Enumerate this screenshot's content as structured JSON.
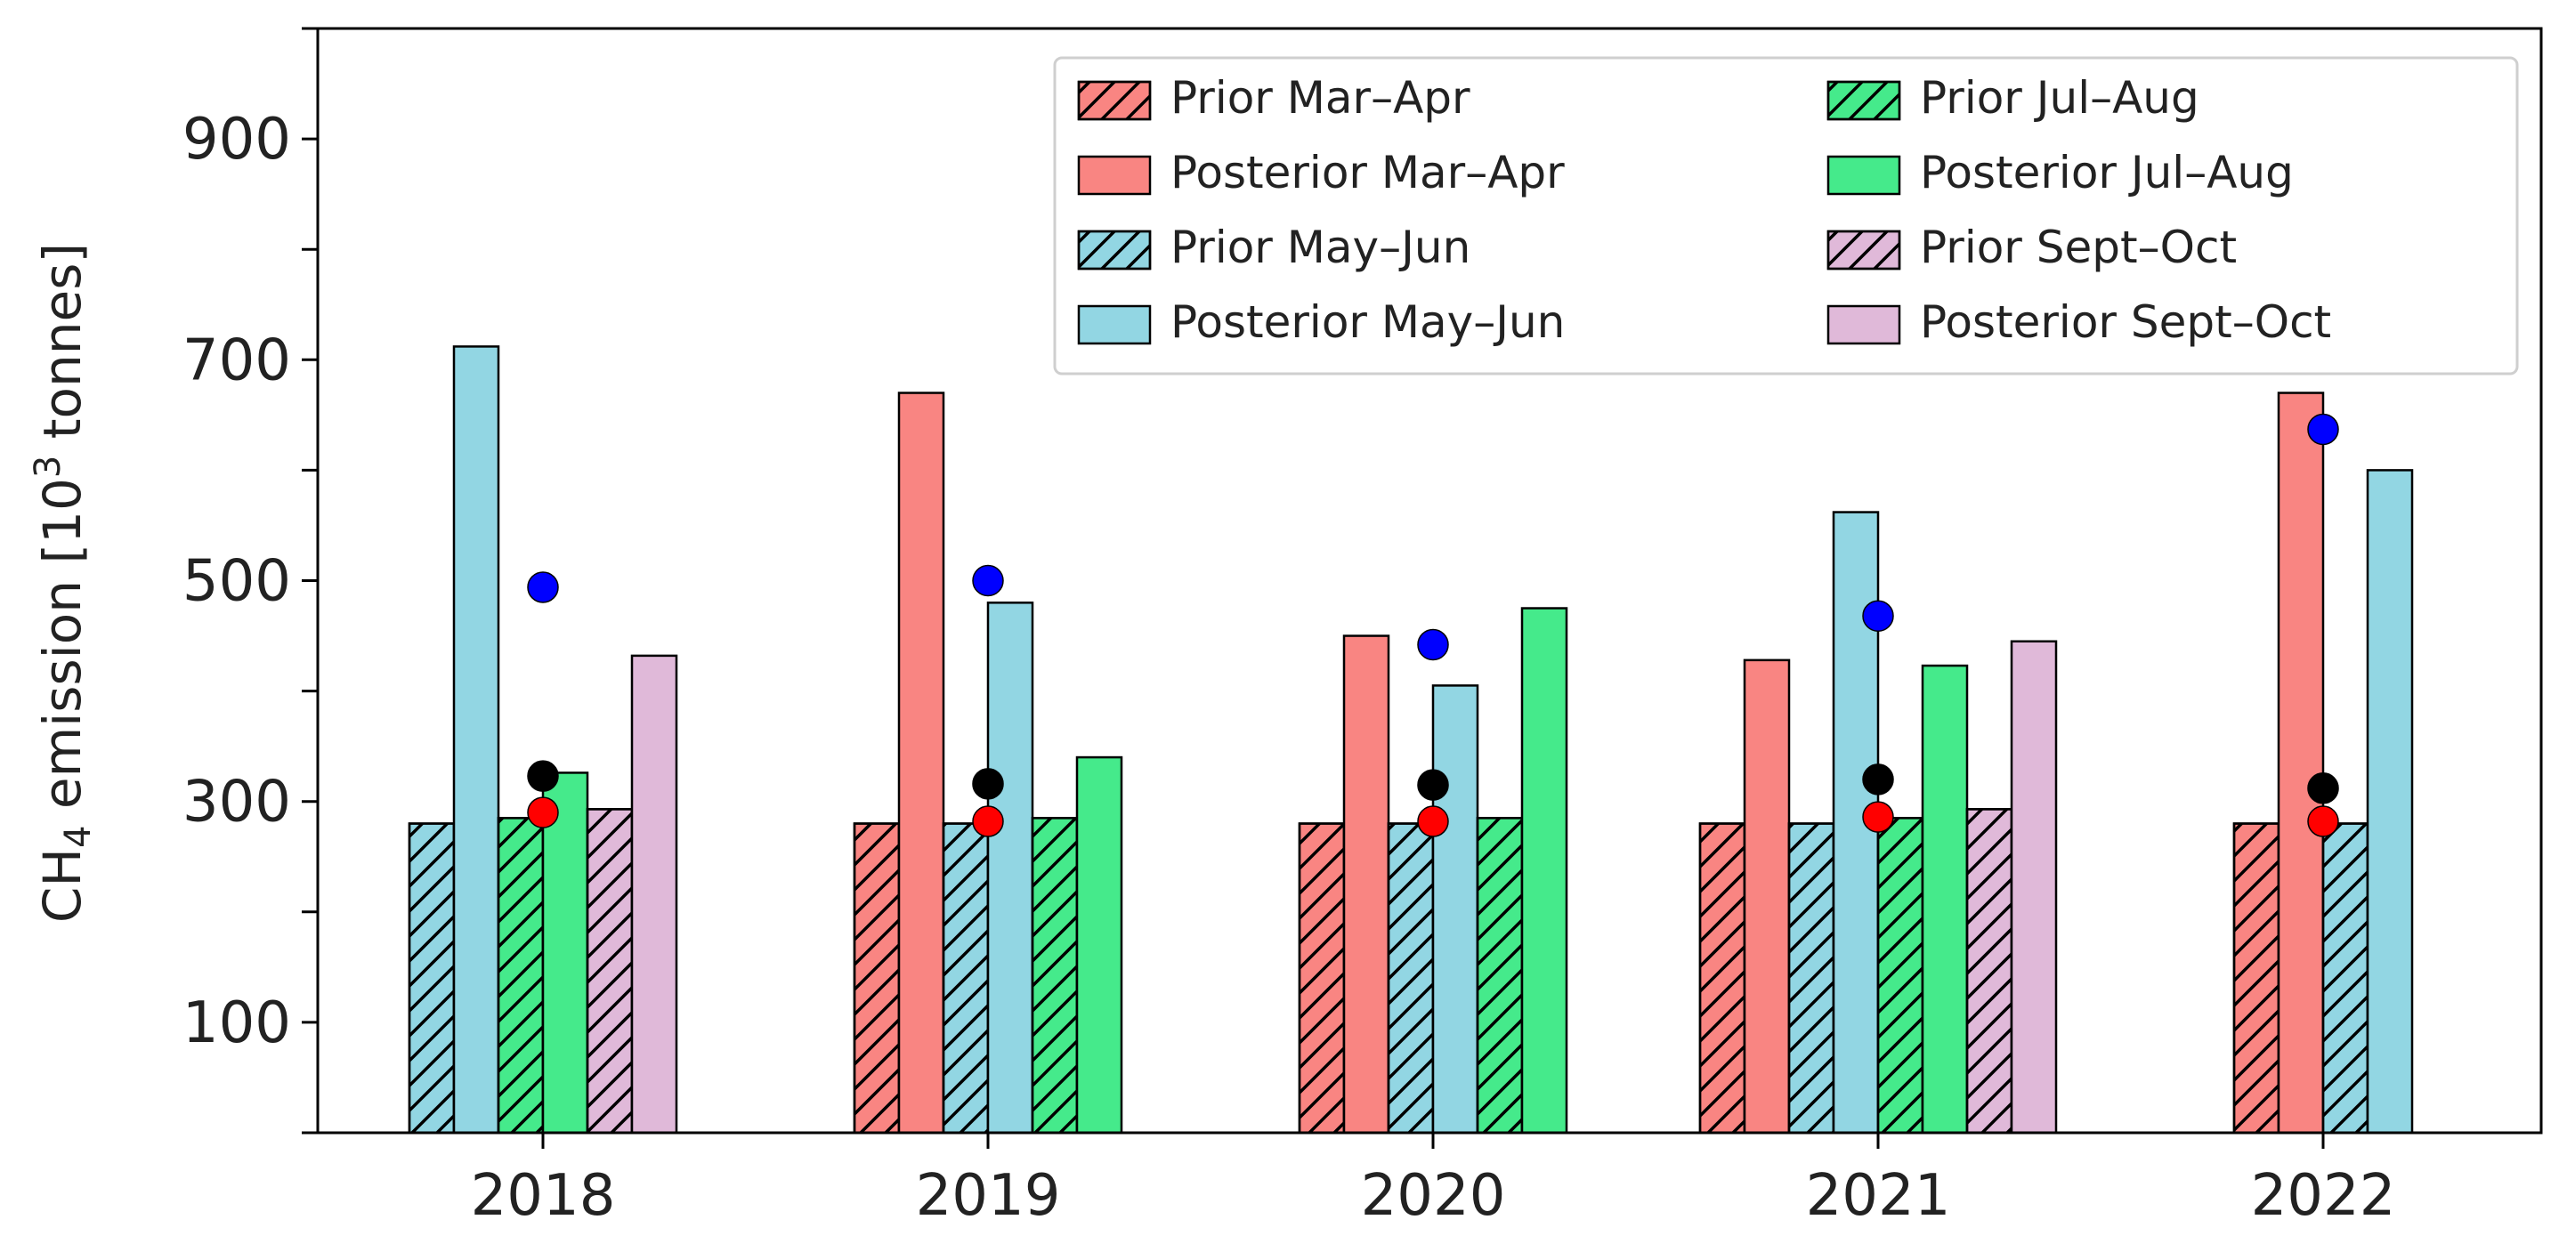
{
  "chart_data": {
    "type": "bar",
    "ylabel": {
      "prefix": "CH",
      "sub": "4",
      "middle": " emission [10",
      "sup": "3",
      "suffix": " tonnes]"
    },
    "ylim": [
      0,
      1000
    ],
    "yticks": [
      100,
      300,
      500,
      700,
      900
    ],
    "xticklabels": [
      "2018",
      "2019",
      "2020",
      "2021",
      "2022"
    ],
    "grid": false,
    "legend_position": "top-right",
    "series": [
      {
        "name": "Prior Mar–Apr",
        "color": "#f98582",
        "hatch": true,
        "values": [
          null,
          280,
          280,
          280,
          280
        ]
      },
      {
        "name": "Posterior Mar–Apr",
        "color": "#f98582",
        "hatch": false,
        "values": [
          null,
          670,
          450,
          428,
          670
        ]
      },
      {
        "name": "Prior May–Jun",
        "color": "#92d6e3",
        "hatch": true,
        "values": [
          280,
          280,
          280,
          280,
          280
        ]
      },
      {
        "name": "Posterior May–Jun",
        "color": "#92d6e3",
        "hatch": false,
        "values": [
          712,
          480,
          405,
          562,
          600
        ]
      },
      {
        "name": "Prior Jul–Aug",
        "color": "#45ea8b",
        "hatch": true,
        "values": [
          285,
          285,
          285,
          285,
          null
        ]
      },
      {
        "name": "Posterior Jul–Aug",
        "color": "#45ea8b",
        "hatch": false,
        "values": [
          326,
          340,
          475,
          423,
          null
        ]
      },
      {
        "name": "Prior Sept–Oct",
        "color": "#e0b9d9",
        "hatch": true,
        "values": [
          293,
          null,
          null,
          293,
          null
        ]
      },
      {
        "name": "Posterior Sept–Oct",
        "color": "#e0b9d9",
        "hatch": false,
        "values": [
          432,
          null,
          null,
          445,
          null
        ]
      }
    ],
    "markers": [
      {
        "color": "#0000ff",
        "values": [
          494,
          500,
          442,
          468,
          637
        ]
      },
      {
        "color": "#000000",
        "values": [
          323,
          316,
          315,
          320,
          312
        ]
      },
      {
        "color": "#ff0000",
        "values": [
          290,
          282,
          282,
          286,
          282
        ]
      }
    ]
  }
}
